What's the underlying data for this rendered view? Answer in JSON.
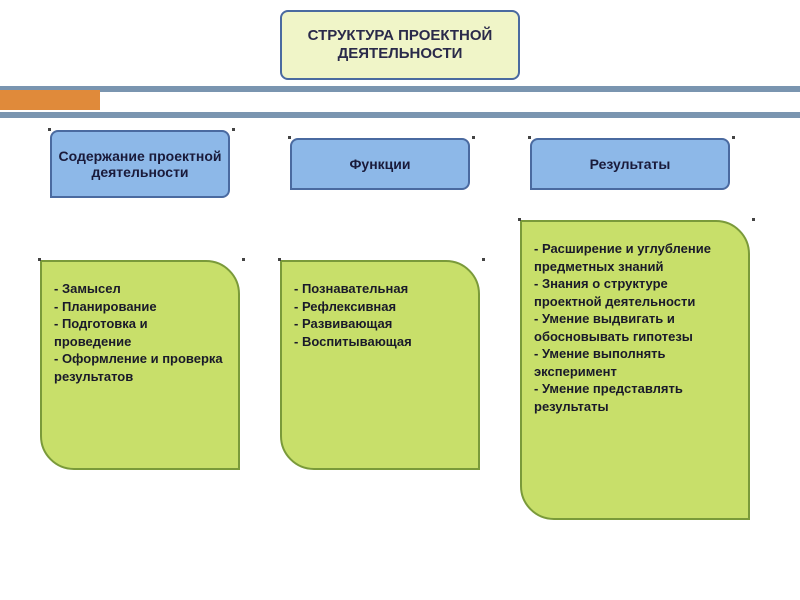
{
  "colors": {
    "title_bg": "#f0f5c8",
    "title_border": "#4a6aa0",
    "orange": "#e08a3a",
    "bar_blue": "#7a95b0",
    "header_bg": "#8db8e8",
    "header_border": "#4a6aa0",
    "body_bg": "#c8df6a",
    "body_border": "#7a9a3a"
  },
  "title": "СТРУКТУРА ПРОЕКТНОЙ ДЕЯТЕЛЬНОСТИ",
  "columns": [
    {
      "header": "Содержание проектной деятельности",
      "body": "- Замысел\n- Планирование\n- Подготовка и проведение\n- Оформление и проверка результатов"
    },
    {
      "header": "Функции",
      "body": "- Познавательная\n- Рефлексивная\n- Развивающая\n- Воспитывающая"
    },
    {
      "header": "Результаты",
      "body": "- Расширение и углубление предметных знаний\n- Знания о структуре проектной деятельности\n- Умение выдвигать и обосновывать гипотезы\n- Умение выполнять эксперимент\n- Умение представлять результаты"
    }
  ]
}
